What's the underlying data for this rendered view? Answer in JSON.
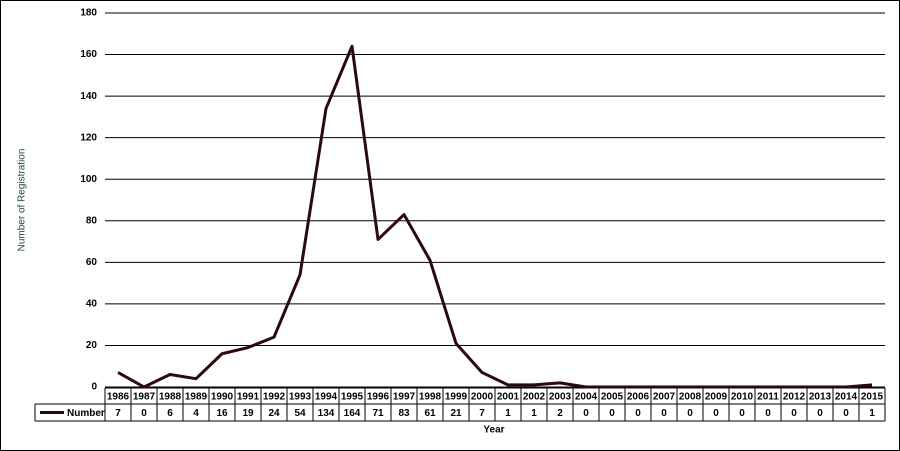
{
  "chart_data": {
    "type": "line",
    "y_label": "Number of Registration",
    "x_label": "Year",
    "categories": [
      "1986",
      "1987",
      "1988",
      "1989",
      "1990",
      "1991",
      "1992",
      "1993",
      "1994",
      "1995",
      "1996",
      "1997",
      "1998",
      "1999",
      "2000",
      "2001",
      "2002",
      "2003",
      "2004",
      "2005",
      "2006",
      "2007",
      "2008",
      "2009",
      "2010",
      "2011",
      "2012",
      "2013",
      "2014",
      "2015"
    ],
    "series": [
      {
        "name": "Number",
        "color": "#2a0a0a",
        "values": [
          7,
          0,
          6,
          4,
          16,
          19,
          24,
          54,
          134,
          164,
          71,
          83,
          61,
          21,
          7,
          1,
          1,
          2,
          0,
          0,
          0,
          0,
          0,
          0,
          0,
          0,
          0,
          0,
          0,
          1
        ]
      }
    ],
    "ylim": [
      0,
      180
    ],
    "yticks": [
      0,
      20,
      40,
      60,
      80,
      100,
      120,
      140,
      160,
      180
    ],
    "grid": true,
    "data_table": true
  }
}
